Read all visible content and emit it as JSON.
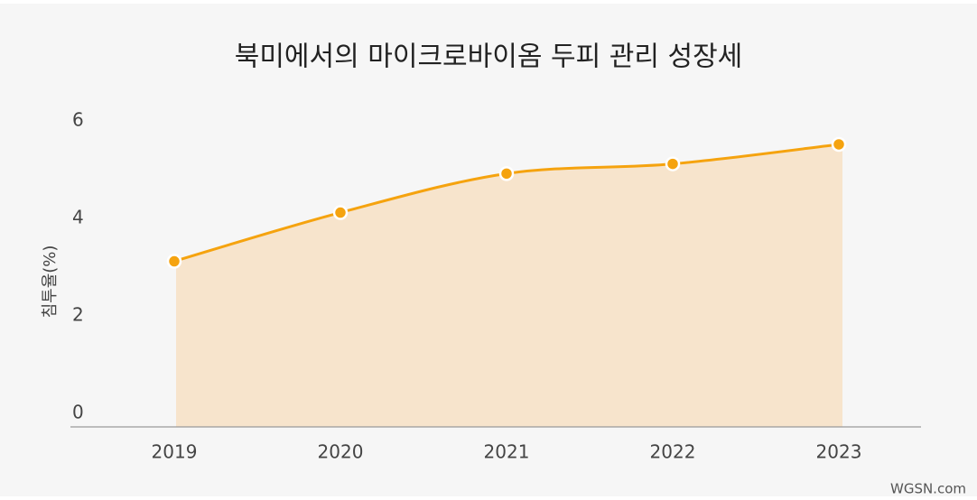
{
  "chart_data": {
    "type": "area",
    "title": "북미에서의 마이크로바이옴 두피 관리 성장세",
    "y_label": "침투율(%)",
    "source": "WGSN.com",
    "categories": [
      "2019",
      "2020",
      "2021",
      "2022",
      "2023"
    ],
    "series": [
      {
        "name": "침투율",
        "color": "#f5a30f",
        "values": [
          3.4,
          4.4,
          5.2,
          5.4,
          5.8
        ]
      }
    ],
    "area_color": "#f7e4cc",
    "ylim": [
      0,
      6.3
    ],
    "yticks": [
      0,
      2,
      4,
      6
    ],
    "grid": false
  }
}
